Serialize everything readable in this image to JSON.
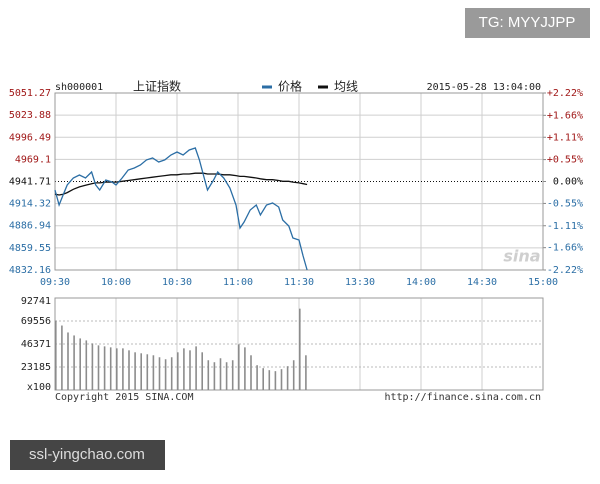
{
  "overlay": {
    "top_right": "TG: MYYJJPP",
    "bottom_left": "ssl-yingchao.com"
  },
  "watermark": "sina",
  "footer": {
    "copyright": "Copyright 2015 SINA.COM",
    "url": "http://finance.sina.com.cn"
  },
  "chart_data": [
    {
      "type": "line",
      "symbol": "sh000001",
      "title": "上证指数",
      "timestamp": "2015-05-28 13:04:00",
      "x": [
        0,
        2,
        4,
        6,
        9,
        12,
        15,
        18,
        20,
        22,
        25,
        28,
        30,
        33,
        36,
        39,
        42,
        45,
        48,
        51,
        54,
        57,
        60,
        63,
        66,
        69,
        71,
        73,
        75,
        78,
        80,
        83,
        86,
        89,
        91,
        93,
        96,
        99,
        101,
        104,
        107,
        110,
        112,
        115,
        117,
        120,
        122,
        124
      ],
      "series": [
        {
          "name": "价格",
          "color": "#2b6ea5",
          "values": [
            4931.2,
            4912.6,
            4925.0,
            4937.4,
            4946.0,
            4949.7,
            4946.0,
            4953.5,
            4937.4,
            4931.2,
            4943.6,
            4941.1,
            4937.4,
            4946.0,
            4956.0,
            4958.4,
            4962.1,
            4968.4,
            4970.8,
            4965.9,
            4968.4,
            4974.5,
            4978.2,
            4974.5,
            4980.7,
            4983.2,
            4968.4,
            4949.7,
            4931.2,
            4943.6,
            4953.5,
            4946.0,
            4933.7,
            4912.6,
            4884.1,
            4891.6,
            4906.4,
            4912.6,
            4900.2,
            4912.6,
            4915.1,
            4910.1,
            4894.0,
            4886.6,
            4871.8,
            4869.3,
            4849.5,
            4832.2
          ]
        },
        {
          "name": "均线",
          "color": "#111111",
          "values": [
            4926,
            4925,
            4926,
            4928,
            4932,
            4935,
            4937,
            4939,
            4940,
            4940,
            4941,
            4941,
            4941,
            4942,
            4943,
            4944,
            4945,
            4946,
            4947,
            4948,
            4949,
            4950,
            4950,
            4951,
            4951,
            4952,
            4952,
            4952,
            4951,
            4951,
            4951,
            4950,
            4950,
            4949,
            4948,
            4948,
            4947,
            4946,
            4945,
            4944,
            4944,
            4943,
            4942,
            4942,
            4941,
            4940,
            4939,
            4938
          ]
        }
      ],
      "xlim": [
        0,
        240
      ],
      "xticks": [
        {
          "value": 0,
          "label": "09:30"
        },
        {
          "value": 30,
          "label": "10:00"
        },
        {
          "value": 60,
          "label": "10:30"
        },
        {
          "value": 90,
          "label": "11:00"
        },
        {
          "value": 120,
          "label": "11:30"
        },
        {
          "value": 150,
          "label": "13:30"
        },
        {
          "value": 180,
          "label": "14:00"
        },
        {
          "value": 210,
          "label": "14:30"
        },
        {
          "value": 240,
          "label": "15:00"
        }
      ],
      "ylim": [
        4832.16,
        5051.27
      ],
      "yticks": [
        4832.16,
        4859.55,
        4886.94,
        4914.32,
        4941.71,
        4969.1,
        4996.49,
        5023.88,
        5051.27
      ],
      "y2lim": [
        -2.22,
        2.22
      ],
      "y2ticks": [
        {
          "value": -2.22,
          "label": "-2.22%"
        },
        {
          "value": -1.66,
          "label": "-1.66%"
        },
        {
          "value": -1.11,
          "label": "-1.11%"
        },
        {
          "value": -0.55,
          "label": "-0.55%"
        },
        {
          "value": 0,
          "label": "0.00%"
        },
        {
          "value": 0.55,
          "label": "+0.55%"
        },
        {
          "value": 1.11,
          "label": "+1.11%"
        },
        {
          "value": 1.66,
          "label": "+1.66%"
        },
        {
          "value": 2.22,
          "label": "+2.22%"
        }
      ],
      "grid": true
    },
    {
      "type": "bar",
      "color": "#8c8c8c",
      "x": [
        0,
        3,
        6,
        9,
        12,
        15,
        18,
        21,
        24,
        27,
        30,
        33,
        36,
        39,
        42,
        45,
        48,
        51,
        54,
        57,
        60,
        63,
        66,
        69,
        72,
        75,
        78,
        81,
        84,
        87,
        90,
        93,
        96,
        99,
        102,
        105,
        108,
        111,
        114,
        117,
        120,
        123
      ],
      "values": [
        70000,
        65000,
        58000,
        55000,
        52000,
        50000,
        47000,
        45000,
        44000,
        43000,
        42000,
        42000,
        40000,
        38000,
        37000,
        36000,
        35000,
        33000,
        31000,
        33000,
        38000,
        42000,
        40000,
        44000,
        38000,
        30000,
        28000,
        32000,
        28000,
        30000,
        46000,
        43000,
        35000,
        25000,
        22000,
        20000,
        19000,
        21000,
        24000,
        30000,
        82000,
        35000
      ],
      "xlim": [
        0,
        240
      ],
      "xticks": [
        0,
        30,
        60,
        90,
        120,
        150,
        180,
        210,
        240
      ],
      "ylim": [
        0,
        92741
      ],
      "yticks": [
        {
          "value": 0,
          "label": "x100"
        },
        23185,
        46371,
        69556,
        92741
      ],
      "grid": true
    }
  ]
}
